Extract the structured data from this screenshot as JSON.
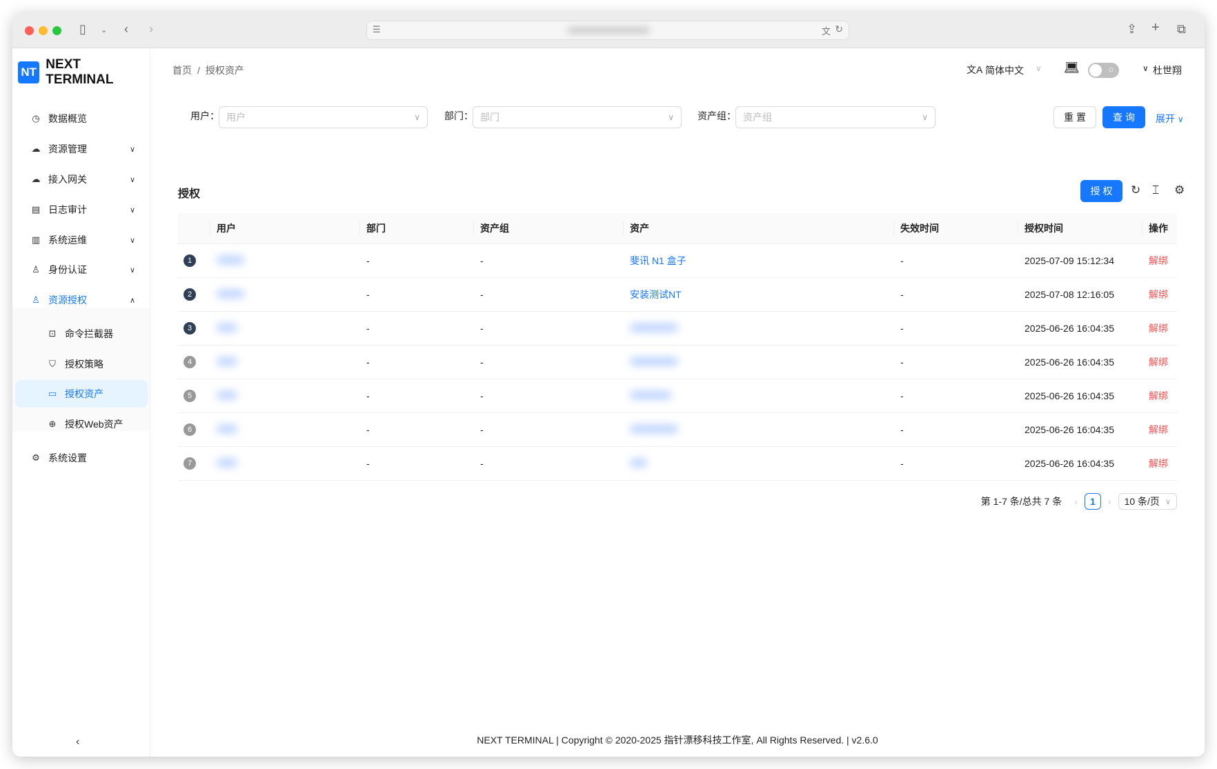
{
  "brand": {
    "logo_abbr": "NT",
    "name": "NEXT TERMINAL",
    "accent": "#1677ff"
  },
  "sidebar": {
    "items": [
      {
        "label": "数据概览",
        "icon": "dashboard-icon",
        "expandable": false
      },
      {
        "label": "资源管理",
        "icon": "cloud-icon",
        "expandable": true
      },
      {
        "label": "接入网关",
        "icon": "gateway-icon",
        "expandable": true
      },
      {
        "label": "日志审计",
        "icon": "audit-icon",
        "expandable": true
      },
      {
        "label": "系统运维",
        "icon": "ops-icon",
        "expandable": true
      },
      {
        "label": "身份认证",
        "icon": "user-auth-icon",
        "expandable": true
      },
      {
        "label": "资源授权",
        "icon": "user-auth-icon",
        "expandable": true,
        "expanded": true,
        "children": [
          {
            "label": "命令拦截器",
            "icon": "terminal-icon"
          },
          {
            "label": "授权策略",
            "icon": "shield-icon"
          },
          {
            "label": "授权资产",
            "icon": "monitor-icon",
            "selected": true
          },
          {
            "label": "授权Web资产",
            "icon": "globe-icon"
          }
        ]
      },
      {
        "label": "系统设置",
        "icon": "gear-icon",
        "expandable": false
      }
    ]
  },
  "breadcrumb": [
    "首页",
    "/",
    "授权资产"
  ],
  "header": {
    "language": "简体中文",
    "user": "杜世翔",
    "theme_dark": false
  },
  "filters": {
    "user": {
      "label": "用户：",
      "placeholder": "用户"
    },
    "department": {
      "label": "部门：",
      "placeholder": "部门"
    },
    "asset_group": {
      "label": "资产组：",
      "placeholder": "资产组"
    },
    "reset": "重置",
    "query": "查询",
    "expand": "展开"
  },
  "table": {
    "title": "授权",
    "authorize_button": "授权",
    "columns": [
      "",
      "用户",
      "部门",
      "资产组",
      "资产",
      "失效时间",
      "授权时间",
      "操作"
    ],
    "rows": [
      {
        "index": "1",
        "department": "-",
        "asset_group": "-",
        "asset": "斐讯 N1 盒子",
        "expire": "-",
        "granted": "2025-07-09 15:12:34",
        "action": "解绑"
      },
      {
        "index": "2",
        "department": "-",
        "asset_group": "-",
        "asset": "安装测试NT",
        "expire": "-",
        "granted": "2025-07-08 12:16:05",
        "action": "解绑"
      },
      {
        "index": "3",
        "department": "-",
        "asset_group": "-",
        "asset": "",
        "expire": "-",
        "granted": "2025-06-26 16:04:35",
        "action": "解绑"
      },
      {
        "index": "4",
        "department": "-",
        "asset_group": "-",
        "asset": "",
        "expire": "-",
        "granted": "2025-06-26 16:04:35",
        "action": "解绑"
      },
      {
        "index": "5",
        "department": "-",
        "asset_group": "-",
        "asset": "",
        "expire": "-",
        "granted": "2025-06-26 16:04:35",
        "action": "解绑"
      },
      {
        "index": "6",
        "department": "-",
        "asset_group": "-",
        "asset": "",
        "expire": "-",
        "granted": "2025-06-26 16:04:35",
        "action": "解绑"
      },
      {
        "index": "7",
        "department": "-",
        "asset_group": "-",
        "asset": "",
        "expire": "-",
        "granted": "2025-06-26 16:04:35",
        "action": "解绑"
      }
    ]
  },
  "pagination": {
    "summary": "第 1-7 条/总共 7 条",
    "current": "1",
    "page_size": "10 条/页"
  },
  "footer": "NEXT TERMINAL | Copyright © 2020-2025 指针漂移科技工作室, All Rights Reserved. | v2.6.0"
}
